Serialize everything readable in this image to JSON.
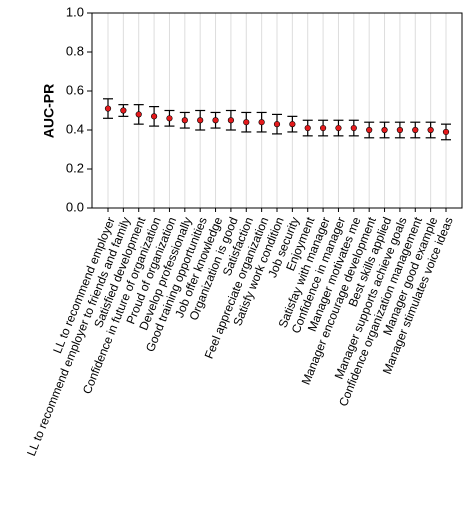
{
  "chart_data": {
    "type": "errorbar",
    "ylabel": "AUC-PR",
    "categories": [
      "LL to recommend employer",
      "LL to recommend employer to friends and family",
      "Satisfied development",
      "Confidence in future of organization",
      "Proud of organization",
      "Develop professionally",
      "Good training opportunities",
      "Job offer knowledge",
      "Organization is good",
      "Satisfaction",
      "Feel appreciate organization",
      "Satisfy work condition",
      "Job security",
      "Enjoyment",
      "Satisfay with manager",
      "Confidence in manager",
      "Manager motivates me",
      "Manager encourage development",
      "Best skills applied",
      "Manager supports achieve goals",
      "Confidence organization management",
      "Manager good example",
      "Manager stimulates voice ideas"
    ],
    "values": [
      0.51,
      0.5,
      0.48,
      0.47,
      0.46,
      0.45,
      0.45,
      0.45,
      0.45,
      0.44,
      0.44,
      0.43,
      0.43,
      0.41,
      0.41,
      0.41,
      0.41,
      0.4,
      0.4,
      0.4,
      0.4,
      0.4,
      0.39
    ],
    "errors": [
      0.05,
      0.03,
      0.05,
      0.05,
      0.04,
      0.04,
      0.05,
      0.04,
      0.05,
      0.05,
      0.05,
      0.05,
      0.04,
      0.04,
      0.04,
      0.04,
      0.04,
      0.04,
      0.04,
      0.04,
      0.04,
      0.04,
      0.04
    ],
    "color": "#e41a1c",
    "error_color": "#000000",
    "ylim": [
      0,
      1
    ],
    "yticks": [
      {
        "value": 0,
        "label": "0.0"
      },
      {
        "value": 0.2,
        "label": "0.2"
      },
      {
        "value": 0.4,
        "label": "0.4"
      },
      {
        "value": 0.6,
        "label": "0.6"
      },
      {
        "value": 0.8,
        "label": "0.8"
      },
      {
        "value": 1,
        "label": "1.0"
      }
    ],
    "grid": true
  }
}
